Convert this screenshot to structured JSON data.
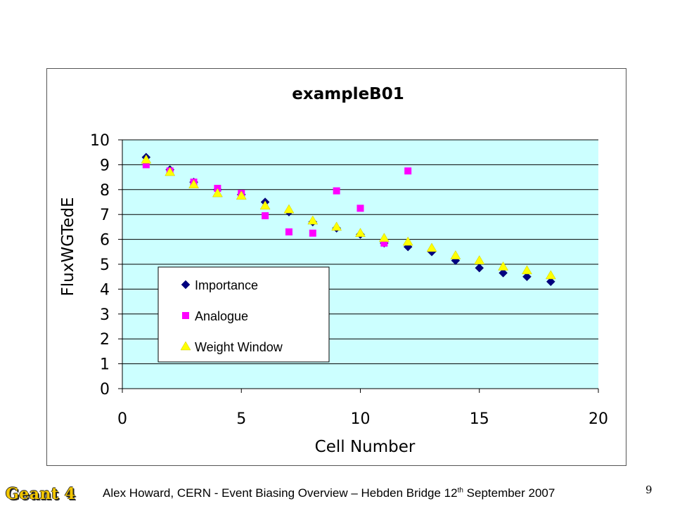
{
  "chart_data": {
    "type": "scatter",
    "title": "exampleB01",
    "xlabel": "Cell Number",
    "ylabel": "FluxWGTedE",
    "xlim": [
      0,
      20
    ],
    "ylim": [
      0,
      10
    ],
    "xticks": [
      0,
      5,
      10,
      15,
      20
    ],
    "yticks": [
      0,
      1,
      2,
      3,
      4,
      5,
      6,
      7,
      8,
      9,
      10
    ],
    "grid": "horizontal",
    "legend_position": "lower-left",
    "plot_background": "#ccffff",
    "series": [
      {
        "name": "Importance",
        "marker": "diamond",
        "color": "#000080",
        "x": [
          1,
          2,
          3,
          4,
          5,
          6,
          7,
          8,
          9,
          10,
          11,
          12,
          13,
          14,
          15,
          16,
          17,
          18
        ],
        "y": [
          9.3,
          8.8,
          8.3,
          8.0,
          7.8,
          7.5,
          7.1,
          6.7,
          6.45,
          6.2,
          5.85,
          5.7,
          5.5,
          5.15,
          4.85,
          4.65,
          4.5,
          4.3
        ]
      },
      {
        "name": "Analogue",
        "marker": "square",
        "color": "#ff00ff",
        "x": [
          1,
          2,
          3,
          4,
          5,
          6,
          7,
          8,
          9,
          10,
          11,
          12
        ],
        "y": [
          9.0,
          8.75,
          8.3,
          8.05,
          7.85,
          6.95,
          6.3,
          6.25,
          7.95,
          7.25,
          5.85,
          8.75
        ]
      },
      {
        "name": "Weight Window",
        "marker": "triangle",
        "color": "#ffff00",
        "x": [
          1,
          2,
          3,
          4,
          5,
          6,
          7,
          8,
          9,
          10,
          11,
          12,
          13,
          14,
          15,
          16,
          17,
          18
        ],
        "y": [
          9.2,
          8.7,
          8.2,
          7.85,
          7.75,
          7.35,
          7.2,
          6.75,
          6.5,
          6.25,
          6.05,
          5.9,
          5.65,
          5.35,
          5.15,
          4.9,
          4.75,
          4.55
        ]
      }
    ]
  },
  "footer": {
    "logo_text": "Geant 4",
    "caption_main": "Alex Howard, CERN - Event Biasing Overview – Hebden Bridge 12",
    "caption_sup": "th",
    "caption_tail": " September 2007",
    "page_number": "9"
  }
}
